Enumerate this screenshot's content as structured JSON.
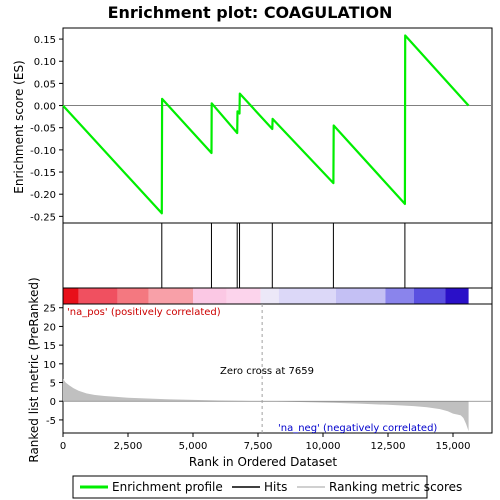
{
  "chart_data": {
    "title": "Enrichment plot: COAGULATION",
    "top_panel": {
      "type": "line",
      "ylabel": "Enrichment score (ES)",
      "ylim": [
        -0.265,
        0.175
      ],
      "yticks": [
        "0.15",
        "0.10",
        "0.05",
        "0.00",
        "-0.05",
        "-0.10",
        "-0.15",
        "-0.20",
        "-0.25"
      ],
      "ytick_values": [
        0.15,
        0.1,
        0.05,
        0.0,
        -0.05,
        -0.1,
        -0.15,
        -0.2,
        -0.25
      ],
      "series": [
        {
          "name": "Enrichment profile",
          "color": "#00ee00",
          "points": [
            [
              0,
              0.0
            ],
            [
              3800,
              -0.243
            ],
            [
              3810,
              0.015
            ],
            [
              5710,
              -0.107
            ],
            [
              5720,
              0.005
            ],
            [
              6700,
              -0.062
            ],
            [
              6710,
              -0.013
            ],
            [
              6790,
              -0.018
            ],
            [
              6800,
              0.027
            ],
            [
              8050,
              -0.053
            ],
            [
              8060,
              -0.03
            ],
            [
              10400,
              -0.175
            ],
            [
              10410,
              -0.045
            ],
            [
              13150,
              -0.222
            ],
            [
              13160,
              0.158
            ],
            [
              15600,
              0.0
            ]
          ]
        }
      ]
    },
    "hits": {
      "name": "Hits",
      "color": "#000000",
      "positions": [
        3800,
        5710,
        6700,
        6790,
        8050,
        10400,
        13150
      ]
    },
    "heatmap_bar": {
      "blocks": [
        {
          "start": 0,
          "end": 600,
          "color": "#e8101a"
        },
        {
          "start": 600,
          "end": 2100,
          "color": "#f05060"
        },
        {
          "start": 2100,
          "end": 3300,
          "color": "#f47880"
        },
        {
          "start": 3300,
          "end": 5000,
          "color": "#f8a0a8"
        },
        {
          "start": 5000,
          "end": 6300,
          "color": "#fbc8e4"
        },
        {
          "start": 6300,
          "end": 7600,
          "color": "#fcd4ec"
        },
        {
          "start": 7600,
          "end": 8300,
          "color": "#ece8f8"
        },
        {
          "start": 8300,
          "end": 10500,
          "color": "#dcd8f8"
        },
        {
          "start": 10500,
          "end": 12400,
          "color": "#c4c0f4"
        },
        {
          "start": 12400,
          "end": 13500,
          "color": "#8a84ec"
        },
        {
          "start": 13500,
          "end": 14700,
          "color": "#5a50e0"
        },
        {
          "start": 14700,
          "end": 15600,
          "color": "#2a10c8"
        }
      ]
    },
    "bottom_panel": {
      "type": "area",
      "ylabel": "Ranked list metric (PreRanked)",
      "xlabel": "Rank in Ordered Dataset",
      "ylim": [
        -8.5,
        26
      ],
      "yticks": [
        "25",
        "20",
        "15",
        "10",
        "5",
        "0",
        "-5"
      ],
      "ytick_values": [
        25,
        20,
        15,
        10,
        5,
        0,
        -5
      ],
      "xlim": [
        0,
        16500
      ],
      "xticks": [
        "0",
        "2,500",
        "5,000",
        "7,500",
        "10,000",
        "12,500",
        "15,000"
      ],
      "xtick_values": [
        0,
        2500,
        5000,
        7500,
        10000,
        12500,
        15000
      ],
      "fill_color": "#c0c0c0",
      "metric": {
        "x": [
          0,
          100,
          250,
          400,
          600,
          900,
          1200,
          1600,
          2000,
          2500,
          3000,
          3500,
          4000,
          5000,
          6000,
          7000,
          7659,
          8500,
          9500,
          10500,
          11500,
          12500,
          13500,
          14000,
          14500,
          14800,
          15000,
          15200,
          15300,
          15400,
          15500,
          15600
        ],
        "y": [
          6.0,
          5.0,
          4.2,
          3.5,
          2.8,
          2.1,
          1.7,
          1.4,
          1.2,
          0.95,
          0.8,
          0.65,
          0.5,
          0.35,
          0.2,
          0.08,
          0.0,
          -0.1,
          -0.25,
          -0.45,
          -0.7,
          -0.95,
          -1.3,
          -1.6,
          -2.1,
          -2.7,
          -3.3,
          -3.6,
          -3.8,
          -4.5,
          -6.0,
          -8.0
        ]
      },
      "zero_cross_rank": 7659,
      "annotations": {
        "pos_label": "'na_pos' (positively correlated)",
        "neg_label": "'na_neg' (negatively correlated)",
        "zero_cross": "Zero cross at 7659"
      },
      "pos_color": "#cc0000",
      "neg_color": "#0000cc"
    },
    "legend": {
      "items": [
        {
          "label": "Enrichment profile",
          "color": "#00ee00"
        },
        {
          "label": "Hits",
          "color": "#000000"
        },
        {
          "label": "Ranking metric scores",
          "color": "#c0c0c0"
        }
      ]
    }
  }
}
